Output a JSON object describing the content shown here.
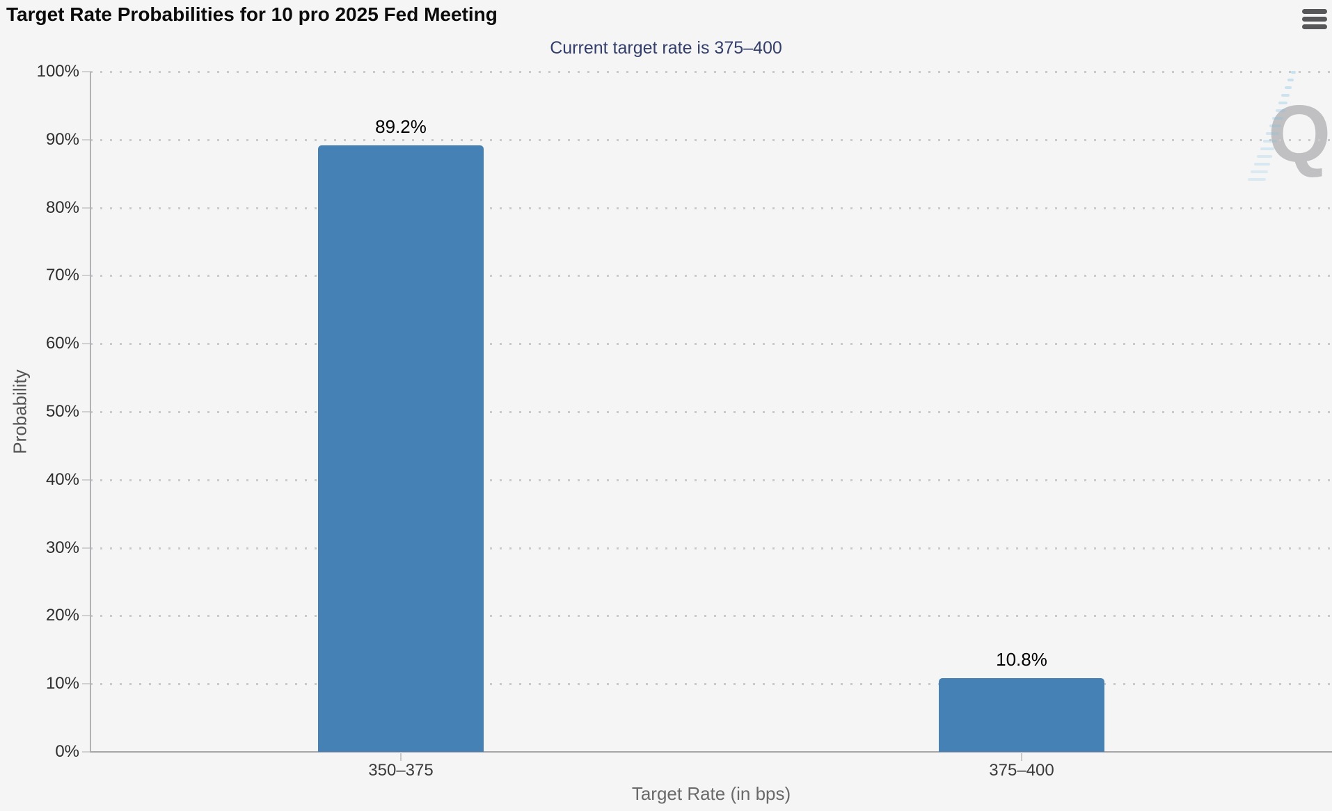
{
  "header": {
    "title": "Target Rate Probabilities for 10 pro 2025 Fed Meeting",
    "menu_icon": "hamburger-icon"
  },
  "chart_data": {
    "type": "bar",
    "title": "Target Rate Probabilities for 10 pro 2025 Fed Meeting",
    "subtitle": "Current target rate is 375–400",
    "categories": [
      "350–375",
      "375–400"
    ],
    "values": [
      89.2,
      10.8
    ],
    "value_labels": [
      "89.2%",
      "10.8%"
    ],
    "xlabel": "Target Rate (in bps)",
    "ylabel": "Probability",
    "ylim": [
      0,
      100
    ],
    "y_ticks": [
      "0%",
      "10%",
      "20%",
      "30%",
      "40%",
      "50%",
      "60%",
      "70%",
      "80%",
      "90%",
      "100%"
    ],
    "grid": "dotted-horizontal",
    "legend_position": "none",
    "bar_color": "#4581b4",
    "subtitle_color": "#333e6a",
    "axis_title_color": "#6a6a6a",
    "background_color": "#f5f5f6"
  },
  "watermark": {
    "letter": "Q"
  }
}
